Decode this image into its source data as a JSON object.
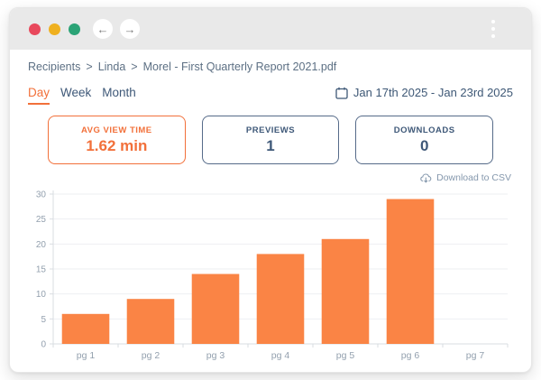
{
  "browser_chrome": {
    "traffic_light_colors": [
      "#E8485C",
      "#EFB01F",
      "#2BA376"
    ],
    "back_glyph": "←",
    "forward_glyph": "→"
  },
  "breadcrumb": {
    "items": [
      "Recipients",
      "Linda",
      "Morel - First Quarterly Report 2021.pdf"
    ],
    "separator": ">"
  },
  "tabs": {
    "day": "Day",
    "week": "Week",
    "month": "Month",
    "active": "Day"
  },
  "date_range": "Jan 17th 2025 - Jan 23rd 2025",
  "stats": [
    {
      "label": "AVG VIEW TIME",
      "value": "1.62 min",
      "accent": true
    },
    {
      "label": "PREVIEWS",
      "value": "1",
      "accent": false
    },
    {
      "label": "DOWNLOADS",
      "value": "0",
      "accent": false
    }
  ],
  "csv_link_label": "Download to CSV",
  "chart_data": {
    "type": "bar",
    "categories": [
      "pg 1",
      "pg 2",
      "pg 3",
      "pg 4",
      "pg 5",
      "pg 6",
      "pg 7"
    ],
    "values": [
      6,
      9,
      14,
      18,
      21,
      29,
      0
    ],
    "title": "",
    "xlabel": "",
    "ylabel": "",
    "ylim": [
      0,
      30
    ],
    "yticks": [
      0,
      5,
      10,
      15,
      20,
      25,
      30
    ],
    "grid": true,
    "legend": false,
    "bar_color": "#FA8445"
  },
  "colors": {
    "accent_orange": "#F2703A",
    "bar_orange": "#FA8445",
    "navy_text": "#3E5878",
    "breadcrumb_text": "#5D7084",
    "csv_link": "#8598AD",
    "topbar_bg": "#E9E9E9",
    "gridline": "#EEEFF2",
    "axis_line": "#D9DDE2",
    "axis_label": "#93A0AE"
  }
}
